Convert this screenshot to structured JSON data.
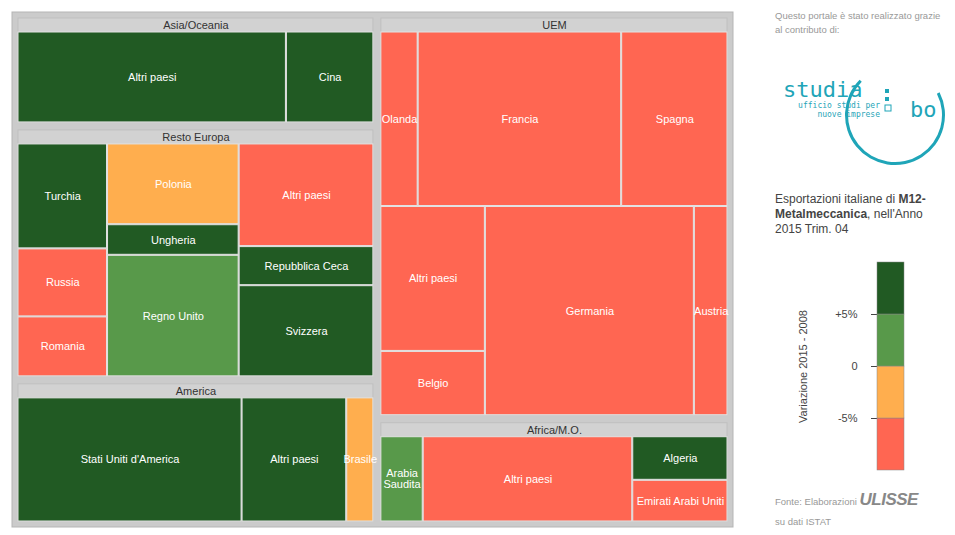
{
  "chart_data": {
    "type": "treemap",
    "title": "Esportazioni italiane di M12-Metalmeccanica, nell'Anno 2015 Trim. 04",
    "groups": [
      {
        "name": "Asia/Oceania",
        "children": [
          {
            "name": "Altri paesi",
            "value": 26700,
            "color": "#215a23"
          },
          {
            "name": "Cina",
            "value": 8700,
            "color": "#215a23"
          }
        ]
      },
      {
        "name": "Resto Europa",
        "children": [
          {
            "name": "Turchia",
            "value": 9100,
            "color": "#215a23"
          },
          {
            "name": "Russia",
            "value": 5900,
            "color": "#ff6652"
          },
          {
            "name": "Romania",
            "value": 5200,
            "color": "#ff6652"
          },
          {
            "name": "Polonia",
            "value": 10300,
            "color": "#ffae4e"
          },
          {
            "name": "Ungheria",
            "value": 3900,
            "color": "#215a23"
          },
          {
            "name": "Regno Unito",
            "value": 15500,
            "color": "#58994a"
          },
          {
            "name": "Altri paesi",
            "value": 13400,
            "color": "#ff6652"
          },
          {
            "name": "Repubblica Ceca",
            "value": 5100,
            "color": "#215a23"
          },
          {
            "name": "Svizzera",
            "value": 11900,
            "color": "#215a23"
          }
        ]
      },
      {
        "name": "America",
        "children": [
          {
            "name": "Stati Uniti d'America",
            "value": 28900,
            "color": "#215a23"
          },
          {
            "name": "Altri paesi",
            "value": 13500,
            "color": "#215a23"
          },
          {
            "name": "Brasile",
            "value": 3500,
            "color": "#ffae4e"
          }
        ]
      },
      {
        "name": "UEM",
        "children": [
          {
            "name": "Olanda",
            "value": 6100,
            "color": "#ff6652"
          },
          {
            "name": "Francia",
            "value": 33300,
            "color": "#ff6652"
          },
          {
            "name": "Spagna",
            "value": 17400,
            "color": "#ff6652"
          },
          {
            "name": "Altri paesi",
            "value": 14200,
            "color": "#ff6652"
          },
          {
            "name": "Belgio",
            "value": 6300,
            "color": "#ff6652"
          },
          {
            "name": "Germania",
            "value": 41000,
            "color": "#ff6652"
          },
          {
            "name": "Austria",
            "value": 6600,
            "color": "#ff6652"
          }
        ]
      },
      {
        "name": "Africa/M.O.",
        "children": [
          {
            "name": "Arabia Saudita",
            "value": 4000,
            "color": "#58994a"
          },
          {
            "name": "Altri paesi",
            "value": 19800,
            "color": "#ff6652"
          },
          {
            "name": "Algeria",
            "value": 4600,
            "color": "#215a23"
          },
          {
            "name": "Emirati Arabi Uniti",
            "value": 4400,
            "color": "#ff6652"
          }
        ]
      }
    ],
    "color_bar": {
      "label": "Variazione 2015 - 2008",
      "range": [
        -10,
        10
      ],
      "ticks": [
        {
          "value": 5,
          "label": "+5%"
        },
        0,
        {
          "value": -5,
          "label": "-5%"
        }
      ],
      "colors": [
        "#ff6652",
        "#ffae4e",
        "#58994a",
        "#215a23"
      ]
    }
  },
  "sidebar": {
    "credits": "Questo portale è stato realizzato grazie al contributo di:",
    "logo": {
      "name": "studia",
      "suffix": "bo",
      "tagline": [
        "ufficio studi per",
        "nuove imprese"
      ]
    },
    "source": {
      "prefix": "Fonte: Elaborazioni",
      "brand": "ULISSE",
      "suffix": "su dati ISTAT"
    }
  }
}
